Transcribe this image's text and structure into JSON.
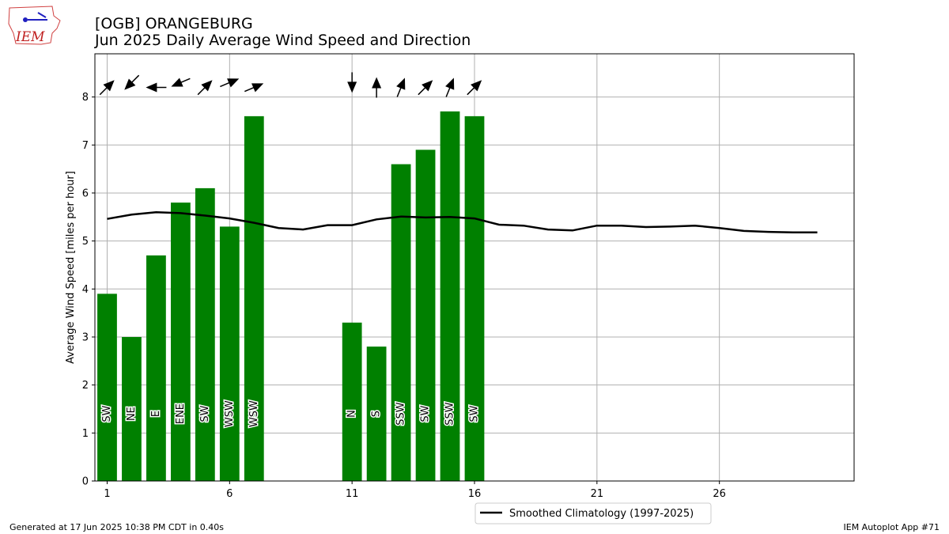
{
  "header": {
    "title_line1": "[OGB] ORANGEBURG",
    "title_line2": "Jun 2025 Daily Average Wind Speed and Direction"
  },
  "logo": {
    "text": "IEM"
  },
  "footer": {
    "left": "Generated at 17 Jun 2025 10:38 PM CDT in 0.40s",
    "right": "IEM Autoplot App #71"
  },
  "legend": {
    "label": "Smoothed Climatology (1997-2025)"
  },
  "colors": {
    "bar": "#008000",
    "line": "#000000",
    "grid": "#b0b0b0"
  },
  "chart_data": {
    "type": "bar",
    "ylabel": "Average Wind Speed [miles per hour]",
    "xlabel": "",
    "xlim": [
      0.5,
      31.5
    ],
    "ylim": [
      0,
      8.9
    ],
    "xticks": [
      1,
      6,
      11,
      16,
      21,
      26
    ],
    "yticks": [
      0,
      1,
      2,
      3,
      4,
      5,
      6,
      7,
      8
    ],
    "grid": true,
    "legend_position": "below",
    "series": [
      {
        "type": "bar",
        "days": [
          1,
          2,
          3,
          4,
          5,
          6,
          7,
          11,
          12,
          13,
          14,
          15,
          16
        ],
        "values": [
          3.9,
          3.0,
          4.7,
          5.8,
          6.1,
          5.3,
          7.6,
          3.3,
          2.8,
          6.6,
          6.9,
          7.7,
          7.6
        ],
        "directions": [
          "SW",
          "NE",
          "E",
          "ENE",
          "SW",
          "WSW",
          "WSW",
          "N",
          "S",
          "SSW",
          "SW",
          "SSW",
          "SW"
        ],
        "arrow_angles_deg": [
          225,
          45,
          90,
          67,
          225,
          247,
          247,
          0,
          180,
          202,
          225,
          202,
          225
        ]
      },
      {
        "type": "line",
        "name": "Smoothed Climatology (1997-2025)",
        "x": [
          1,
          2,
          3,
          4,
          5,
          6,
          7,
          8,
          9,
          10,
          11,
          12,
          13,
          14,
          15,
          16,
          17,
          18,
          19,
          20,
          21,
          22,
          23,
          24,
          25,
          26,
          27,
          28,
          29,
          30
        ],
        "values": [
          5.46,
          5.55,
          5.6,
          5.58,
          5.53,
          5.47,
          5.38,
          5.27,
          5.24,
          5.33,
          5.33,
          5.45,
          5.51,
          5.49,
          5.5,
          5.47,
          5.34,
          5.32,
          5.24,
          5.22,
          5.32,
          5.32,
          5.29,
          5.3,
          5.32,
          5.27,
          5.21,
          5.19,
          5.18,
          5.18
        ]
      }
    ]
  }
}
